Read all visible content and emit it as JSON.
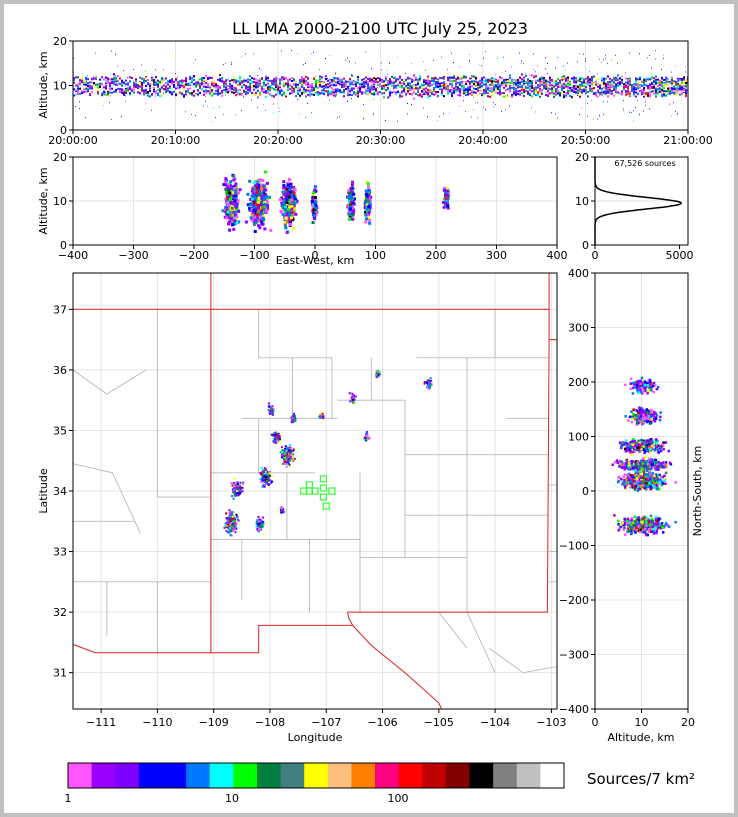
{
  "title": "LL LMA 2000-2100 UTC July 25, 2023",
  "source_count_label": "67,526 sources",
  "colorbar": {
    "label": "Sources/7 km²",
    "tick_labels": [
      "1",
      "10",
      "100"
    ],
    "colors": [
      "#ff55ff",
      "#9900ff",
      "#7f00ff",
      "#0000ff",
      "#0000ff",
      "#0077ff",
      "#00ffff",
      "#00ff00",
      "#007f3f",
      "#3f7f7f",
      "#ffff00",
      "#ffbf7f",
      "#ff8000",
      "#ff0080",
      "#ff0000",
      "#c00000",
      "#800000",
      "#000000",
      "#808080",
      "#c0c0c0",
      "#ffffff"
    ]
  },
  "chart_data": [
    {
      "type": "heatmap",
      "panel": "time-altitude",
      "ylabel": "Altitude, km",
      "ylim": [
        0,
        20
      ],
      "yticks": [
        "0",
        "10",
        "20"
      ],
      "xticks": [
        "20:00:00",
        "20:10:00",
        "20:20:00",
        "20:30:00",
        "20:40:00",
        "20:50:00",
        "21:00:00"
      ],
      "xlim": [
        "20:00:00",
        "21:00:00"
      ],
      "core_altitude_km": [
        8,
        12
      ]
    },
    {
      "type": "heatmap",
      "panel": "east-west-altitude",
      "xlabel": "East-West, km",
      "ylabel": "Altitude, km",
      "xlim": [
        -400,
        400
      ],
      "ylim": [
        0,
        20
      ],
      "xticks": [
        "−400",
        "−300",
        "−200",
        "−100",
        "0",
        "100",
        "200",
        "300",
        "400"
      ],
      "yticks": [
        "0",
        "10",
        "20"
      ],
      "cells": [
        {
          "x": -140,
          "z": 10,
          "w": 30,
          "intensity": 0.9
        },
        {
          "x": -95,
          "z": 10,
          "w": 40,
          "intensity": 1.0
        },
        {
          "x": -45,
          "z": 10,
          "w": 30,
          "intensity": 1.0
        },
        {
          "x": -3,
          "z": 9,
          "w": 10,
          "intensity": 0.5
        },
        {
          "x": 57,
          "z": 10,
          "w": 14,
          "intensity": 0.6
        },
        {
          "x": 85,
          "z": 10,
          "w": 14,
          "intensity": 0.6
        },
        {
          "x": 215,
          "z": 11,
          "w": 14,
          "intensity": 0.2
        }
      ]
    },
    {
      "type": "line",
      "panel": "altitude-histogram",
      "xlim": [
        0,
        5500
      ],
      "ylim": [
        0,
        20
      ],
      "xticks": [
        "0",
        "5000"
      ],
      "yticks": [
        "0",
        "10",
        "20"
      ],
      "peak": {
        "altitude_km": 9.5,
        "count": 5100
      }
    },
    {
      "type": "scatter",
      "panel": "plan-view-map",
      "xlabel": "Longitude",
      "ylabel": "Latitude",
      "xlim": [
        -111.5,
        -102.9
      ],
      "ylim": [
        30.4,
        37.6
      ],
      "xticks": [
        "−111",
        "−110",
        "−109",
        "−108",
        "−107",
        "−106",
        "−105",
        "−104",
        "−103"
      ],
      "yticks": [
        "31",
        "32",
        "33",
        "34",
        "35",
        "36",
        "37"
      ],
      "clusters": [
        {
          "lon": -108.7,
          "lat": 33.5,
          "size": 0.25,
          "intensity": 0.7
        },
        {
          "lon": -108.2,
          "lat": 33.45,
          "size": 0.15,
          "intensity": 0.5
        },
        {
          "lon": -108.6,
          "lat": 34.05,
          "size": 0.2,
          "intensity": 0.6
        },
        {
          "lon": -108.1,
          "lat": 34.25,
          "size": 0.2,
          "intensity": 0.9
        },
        {
          "lon": -107.7,
          "lat": 34.6,
          "size": 0.22,
          "intensity": 1.0
        },
        {
          "lon": -107.9,
          "lat": 34.9,
          "size": 0.15,
          "intensity": 0.7
        },
        {
          "lon": -108.0,
          "lat": 35.35,
          "size": 0.12,
          "intensity": 0.6
        },
        {
          "lon": -107.6,
          "lat": 35.2,
          "size": 0.1,
          "intensity": 0.5
        },
        {
          "lon": -107.1,
          "lat": 35.25,
          "size": 0.08,
          "intensity": 0.4
        },
        {
          "lon": -106.55,
          "lat": 35.55,
          "size": 0.1,
          "intensity": 0.5
        },
        {
          "lon": -106.1,
          "lat": 35.95,
          "size": 0.08,
          "intensity": 0.5
        },
        {
          "lon": -106.3,
          "lat": 34.9,
          "size": 0.1,
          "intensity": 0.5
        },
        {
          "lon": -105.2,
          "lat": 35.8,
          "size": 0.12,
          "intensity": 0.3
        },
        {
          "lon": -107.8,
          "lat": 33.7,
          "size": 0.06,
          "intensity": 0.2
        }
      ],
      "stations": [
        {
          "lon": -107.4,
          "lat": 34.0
        },
        {
          "lon": -107.3,
          "lat": 34.1
        },
        {
          "lon": -107.2,
          "lat": 34.0
        },
        {
          "lon": -107.05,
          "lat": 34.2
        },
        {
          "lon": -107.05,
          "lat": 34.05
        },
        {
          "lon": -106.9,
          "lat": 34.0
        },
        {
          "lon": -107.05,
          "lat": 33.9
        },
        {
          "lon": -107.0,
          "lat": 33.75
        },
        {
          "lon": -107.3,
          "lat": 34.0
        }
      ]
    },
    {
      "type": "heatmap",
      "panel": "altitude-north-south",
      "xlabel": "Altitude, km",
      "ylabel": "North-South, km",
      "xlim": [
        0,
        20
      ],
      "ylim": [
        -400,
        400
      ],
      "xticks": [
        "0",
        "10",
        "20"
      ],
      "yticks": [
        "−400",
        "−300",
        "−200",
        "−100",
        "0",
        "100",
        "200",
        "300",
        "400"
      ],
      "cells": [
        {
          "ns": -60,
          "w": 30,
          "intensity": 1.0
        },
        {
          "ns": 20,
          "w": 30,
          "intensity": 1.0
        },
        {
          "ns": 50,
          "w": 20,
          "intensity": 0.9
        },
        {
          "ns": 85,
          "w": 25,
          "intensity": 0.8
        },
        {
          "ns": 140,
          "w": 30,
          "intensity": 0.4
        },
        {
          "ns": 195,
          "w": 25,
          "intensity": 0.25
        }
      ]
    }
  ]
}
